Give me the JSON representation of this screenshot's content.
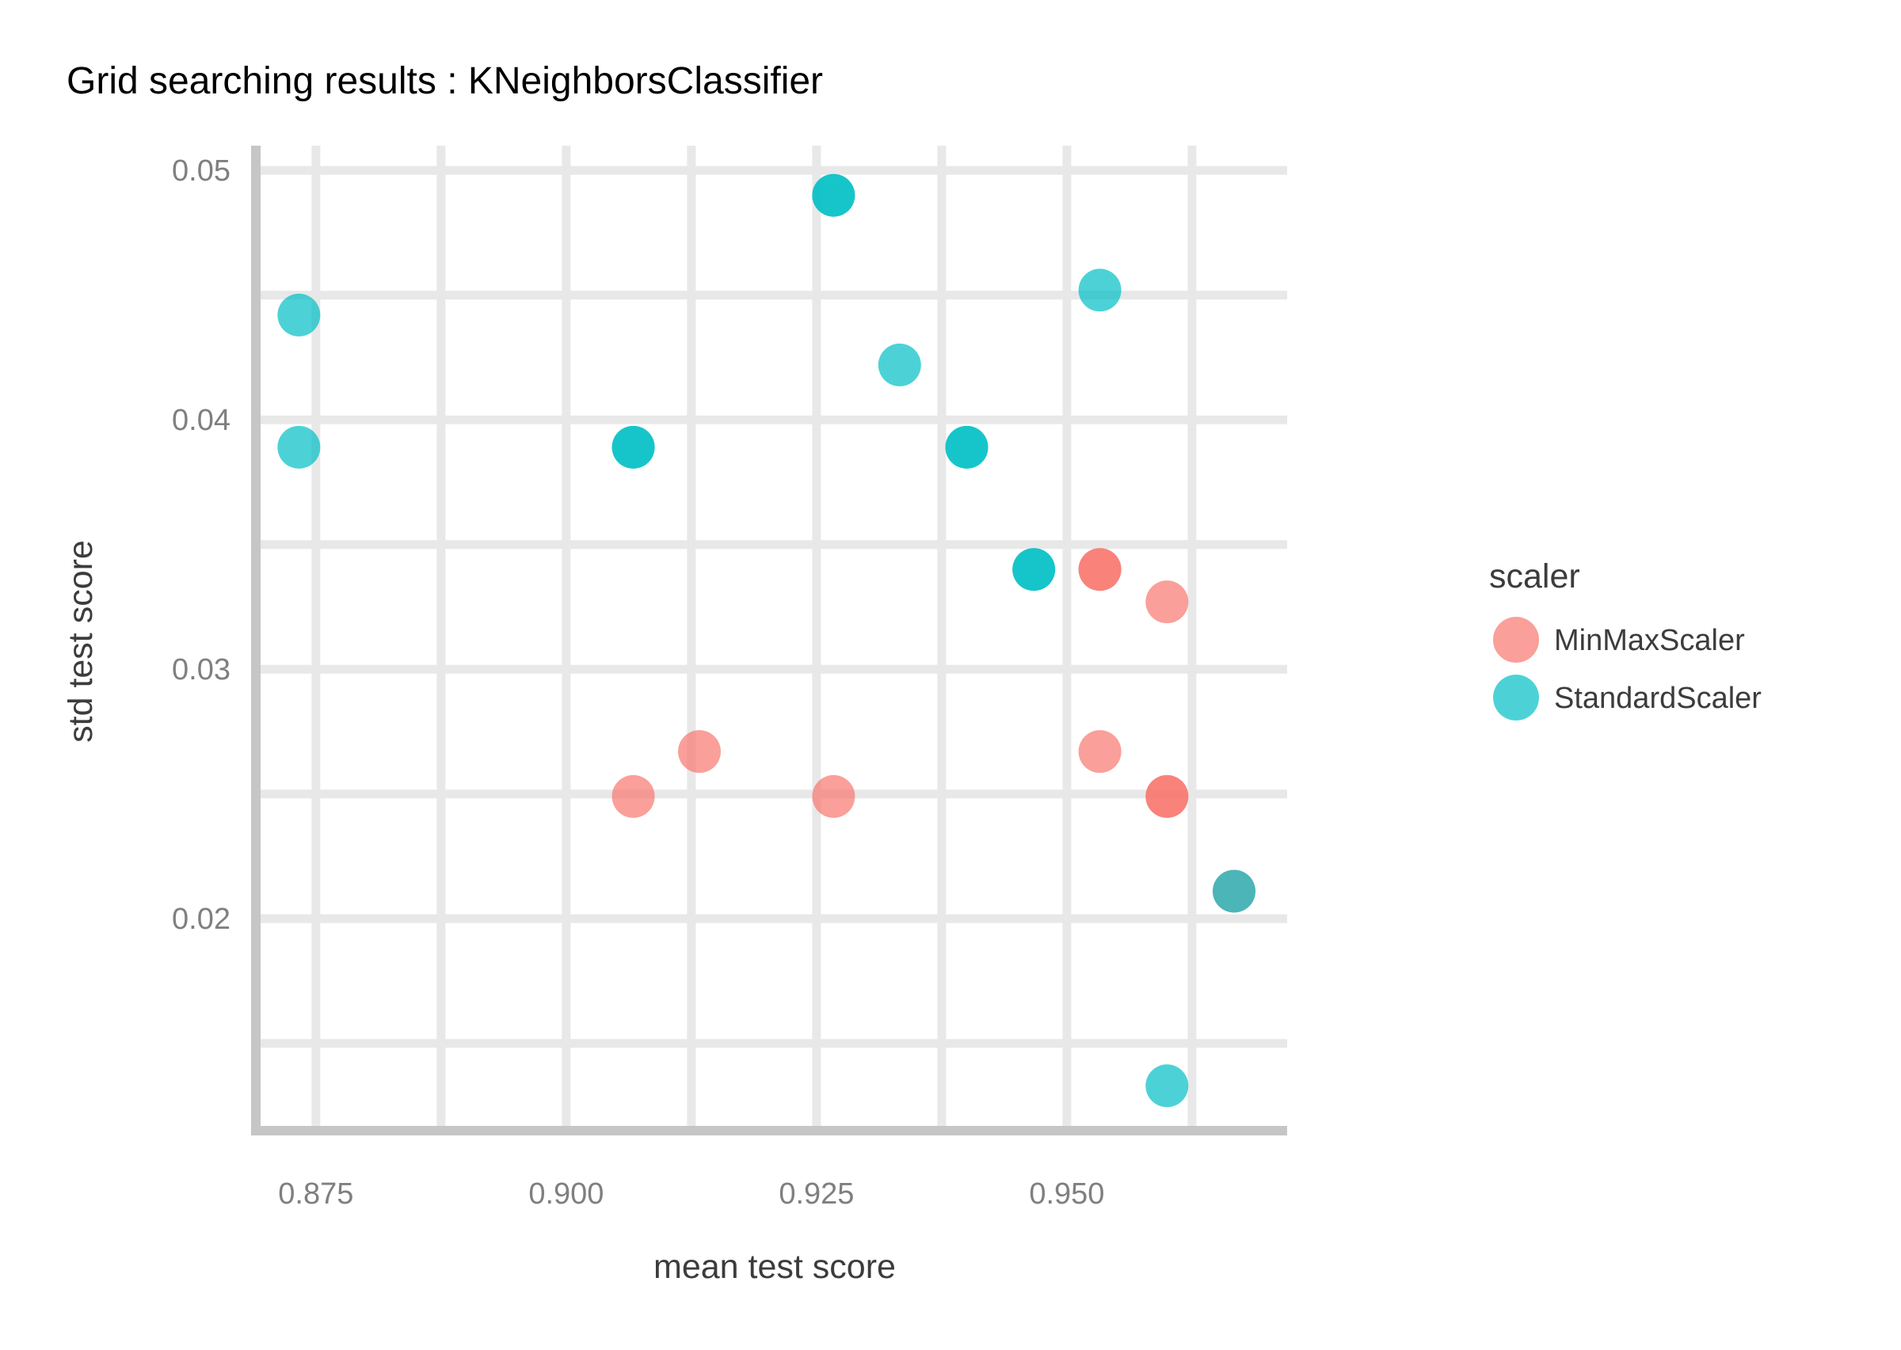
{
  "chart_data": {
    "type": "scatter",
    "title": "Grid searching results :  KNeighborsClassifier",
    "xlabel": "mean test score",
    "ylabel": "std test score",
    "xlim": [
      0.869,
      0.972
    ],
    "ylim": [
      0.0115,
      0.0508
    ],
    "x_ticks": [
      0.875,
      0.9,
      0.925,
      0.95
    ],
    "x_tick_labels": [
      "0.875",
      "0.900",
      "0.925",
      "0.950"
    ],
    "x_minor_ticks": [
      0.8875,
      0.9125,
      0.9375,
      0.9625
    ],
    "y_ticks": [
      0.02,
      0.03,
      0.04,
      0.05
    ],
    "y_tick_labels": [
      "0.02",
      "0.03",
      "0.04",
      "0.05"
    ],
    "y_minor_ticks": [
      0.015,
      0.025,
      0.035,
      0.045
    ],
    "grid": true,
    "legend": {
      "title": "scaler",
      "position": "right"
    },
    "series": [
      {
        "name": "MinMaxScaler",
        "color": "#F8766D",
        "x": [
          0.9067,
          0.9133,
          0.9267,
          0.9533,
          0.9533,
          0.96,
          0.96,
          0.9667,
          0.9533,
          0.96
        ],
        "y": [
          0.0249,
          0.0267,
          0.0249,
          0.034,
          0.0267,
          0.0327,
          0.0249,
          0.0211,
          0.034,
          0.0249
        ]
      },
      {
        "name": "StandardScaler",
        "color": "#00BFC4",
        "x": [
          0.8733,
          0.8733,
          0.9067,
          0.9267,
          0.9333,
          0.94,
          0.9467,
          0.9533,
          0.96,
          0.9667,
          0.9067,
          0.9267,
          0.94,
          0.9467
        ],
        "y": [
          0.0442,
          0.0389,
          0.0389,
          0.049,
          0.0422,
          0.0389,
          0.034,
          0.0452,
          0.0133,
          0.0211,
          0.0389,
          0.049,
          0.0389,
          0.034
        ]
      }
    ]
  }
}
